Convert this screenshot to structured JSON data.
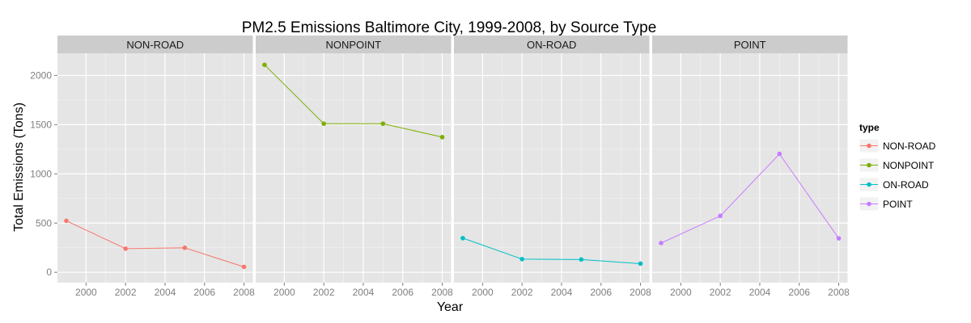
{
  "chart_data": {
    "type": "line",
    "title": "PM2.5 Emissions Baltimore City, 1999-2008, by Source Type",
    "xlabel": "Year",
    "ylabel": "Total Emissions (Tons)",
    "x": [
      1999,
      2002,
      2005,
      2008
    ],
    "xticks": [
      "2000",
      "2002",
      "2004",
      "2006",
      "2008"
    ],
    "yticks": [
      "0",
      "500",
      "1000",
      "1500",
      "2000"
    ],
    "xlim": [
      1998.55,
      2008.45
    ],
    "ylim": [
      -105,
      2225
    ],
    "grid": true,
    "facets": [
      "NON-ROAD",
      "NONPOINT",
      "ON-ROAD",
      "POINT"
    ],
    "legend": {
      "title": "type",
      "placement": "right"
    },
    "series": [
      {
        "name": "NON-ROAD",
        "color": "#F8766D",
        "values": [
          523,
          240,
          249,
          55
        ]
      },
      {
        "name": "NONPOINT",
        "color": "#7CAE00",
        "values": [
          2108,
          1510,
          1510,
          1373
        ]
      },
      {
        "name": "ON-ROAD",
        "color": "#00BFC4",
        "values": [
          347,
          134,
          130,
          88
        ]
      },
      {
        "name": "POINT",
        "color": "#C77CFF",
        "values": [
          297,
          573,
          1203,
          345
        ]
      }
    ]
  }
}
